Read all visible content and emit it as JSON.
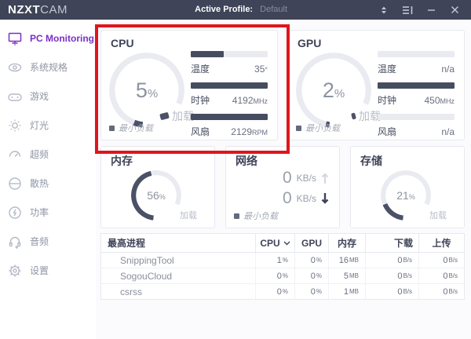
{
  "titlebar": {
    "brand_bold": "NZXT",
    "brand_light": "CAM",
    "profile_label": "Active Profile:",
    "profile_value": "Default"
  },
  "sidebar": {
    "items": [
      {
        "label": "PC Monitoring"
      },
      {
        "label": "系统规格"
      },
      {
        "label": "游戏"
      },
      {
        "label": "灯光"
      },
      {
        "label": "超频"
      },
      {
        "label": "散热"
      },
      {
        "label": "功率"
      },
      {
        "label": "音频"
      },
      {
        "label": "设置"
      }
    ]
  },
  "panels": {
    "cpu": {
      "title": "CPU",
      "load_pct": 5,
      "load_value": "5",
      "load_unit": "%",
      "load_label": "加载",
      "min_load_label": "最小负载",
      "metrics": [
        {
          "label": "温度",
          "value": "35",
          "unit": "°",
          "bar_pct": 43
        },
        {
          "label": "时钟",
          "value": "4192",
          "unit": "MHz",
          "bar_pct": 100
        },
        {
          "label": "风扇",
          "value": "2129",
          "unit": "RPM",
          "bar_pct": 100
        }
      ]
    },
    "gpu": {
      "title": "GPU",
      "load_pct": 2,
      "load_value": "2",
      "load_unit": "%",
      "load_label": "加载",
      "min_load_label": "最小负载",
      "metrics": [
        {
          "label": "温度",
          "value": "n/a",
          "unit": "",
          "bar_pct": 0
        },
        {
          "label": "时钟",
          "value": "450",
          "unit": "MHz",
          "bar_pct": 100
        },
        {
          "label": "风扇",
          "value": "n/a",
          "unit": "",
          "bar_pct": 0
        }
      ]
    },
    "memory": {
      "title": "内存",
      "load_pct": 56,
      "load_value": "56",
      "load_unit": "%",
      "load_label": "加载"
    },
    "network": {
      "title": "网络",
      "upload_value": "0",
      "upload_unit": "KB/s",
      "download_value": "0",
      "download_unit": "KB/s",
      "min_load_label": "最小负载"
    },
    "storage": {
      "title": "存储",
      "load_pct": 21,
      "load_value": "21",
      "load_unit": "%",
      "load_label": "加载"
    }
  },
  "process_table": {
    "headers": {
      "process": "最高进程",
      "cpu": "CPU",
      "gpu": "GPU",
      "mem": "内存",
      "down": "下载",
      "up": "上传"
    },
    "sorted_by": "CPU",
    "rows": [
      {
        "name": "SnippingTool",
        "cpu": {
          "v": "1",
          "u": "%"
        },
        "gpu": {
          "v": "0",
          "u": "%"
        },
        "mem": {
          "v": "16",
          "u": "MB"
        },
        "down": {
          "v": "0",
          "u": "B/s"
        },
        "up": {
          "v": "0",
          "u": "B/s"
        }
      },
      {
        "name": "SogouCloud",
        "cpu": {
          "v": "0",
          "u": "%"
        },
        "gpu": {
          "v": "0",
          "u": "%"
        },
        "mem": {
          "v": "5",
          "u": "MB"
        },
        "down": {
          "v": "0",
          "u": "B/s"
        },
        "up": {
          "v": "0",
          "u": "B/s"
        }
      },
      {
        "name": "csrss",
        "cpu": {
          "v": "0",
          "u": "%"
        },
        "gpu": {
          "v": "0",
          "u": "%"
        },
        "mem": {
          "v": "1",
          "u": "MB"
        },
        "down": {
          "v": "0",
          "u": "B/s"
        },
        "up": {
          "v": "0",
          "u": "B/s"
        }
      }
    ]
  },
  "colors": {
    "titlebar_bg": "#3f4458",
    "accent_purple": "#7b2fc3",
    "gauge_dark": "#4b5166",
    "gauge_track": "#e9ebf1",
    "highlight_red": "#e0151b"
  }
}
